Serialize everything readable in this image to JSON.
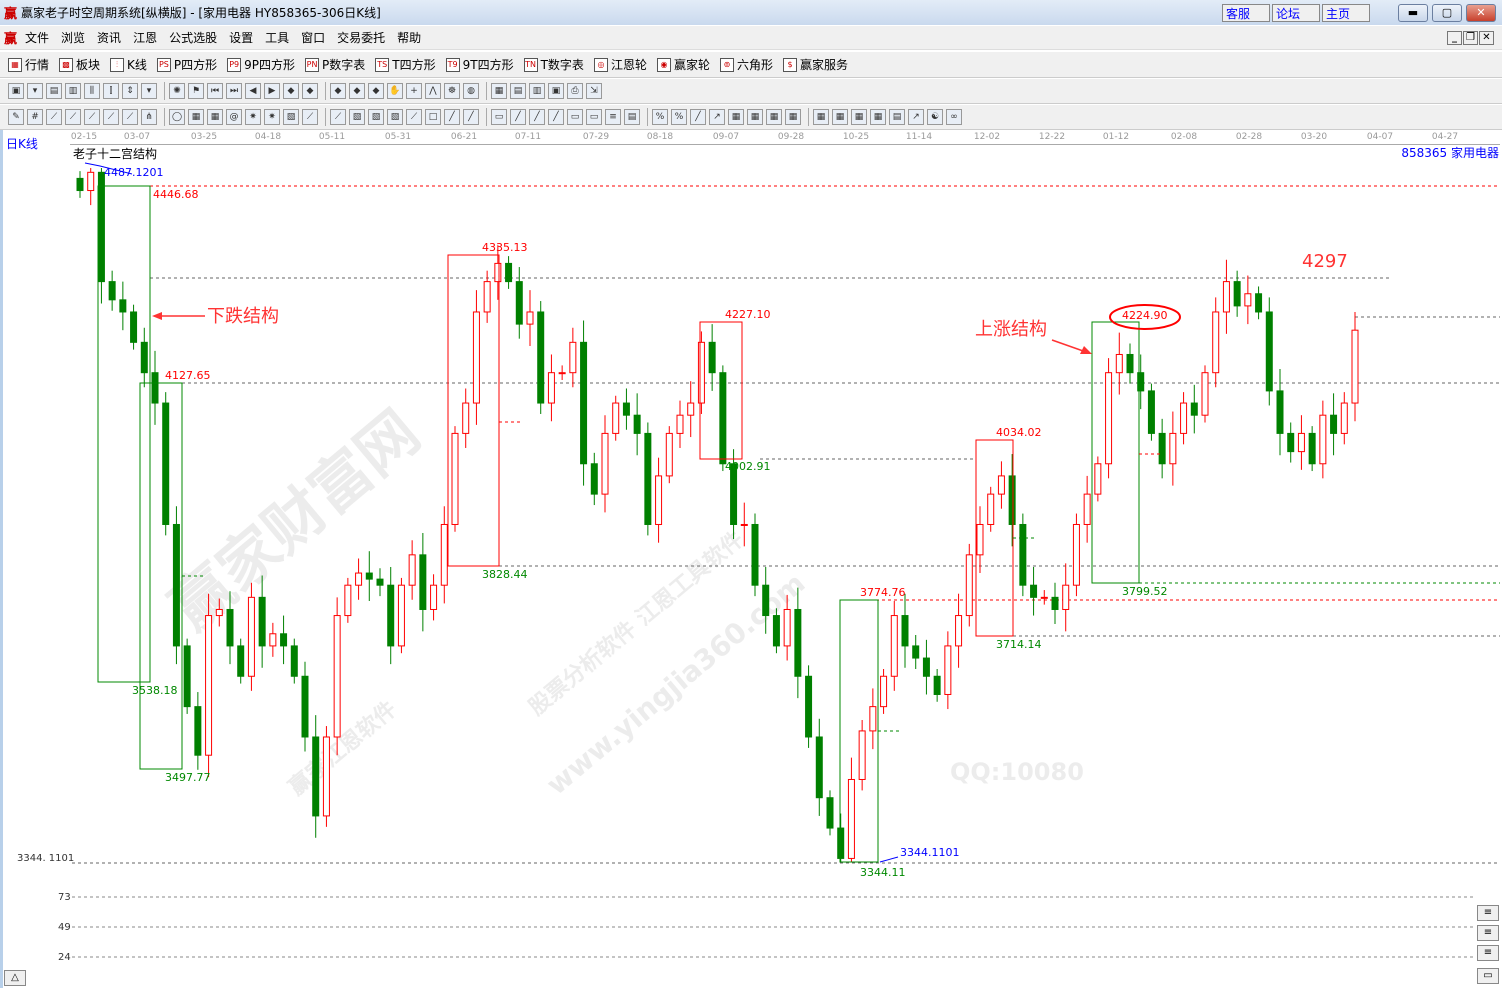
{
  "window": {
    "title": "赢家老子时空周期系统[纵横版] - [家用电器  HY858365-306日K线]",
    "logo": "赢",
    "web_buttons": [
      "客服",
      "论坛",
      "主页"
    ],
    "controls": [
      "minimize",
      "maximize",
      "close"
    ]
  },
  "menu": [
    "文件",
    "浏览",
    "资讯",
    "江恩",
    "公式选股",
    "设置",
    "工具",
    "窗口",
    "交易委托",
    "帮助"
  ],
  "toolbar1": [
    {
      "icon": "grid-quote-icon",
      "glyph": "▦",
      "label": "行情"
    },
    {
      "icon": "sector-icon",
      "glyph": "▩",
      "label": "板块"
    },
    {
      "icon": "kline-icon",
      "glyph": "⫶",
      "label": "K线"
    },
    {
      "icon": "ps-icon",
      "glyph": "PS",
      "label": "P四方形"
    },
    {
      "icon": "p9-icon",
      "glyph": "P9",
      "label": "9P四方形"
    },
    {
      "icon": "pn-icon",
      "glyph": "PN",
      "label": "P数字表"
    },
    {
      "icon": "ts-icon",
      "glyph": "TS",
      "label": "T四方形"
    },
    {
      "icon": "t9-icon",
      "glyph": "T9",
      "label": "9T四方形"
    },
    {
      "icon": "tn-icon",
      "glyph": "TN",
      "label": "T数字表"
    },
    {
      "icon": "gann-wheel-icon",
      "glyph": "◎",
      "label": "江恩轮"
    },
    {
      "icon": "winner-wheel-icon",
      "glyph": "◉",
      "label": "赢家轮"
    },
    {
      "icon": "hexagon-icon",
      "glyph": "⊚",
      "label": "六角形"
    },
    {
      "icon": "dollar-icon",
      "glyph": "$",
      "label": "赢家服务"
    }
  ],
  "toolbar2": [
    "save",
    "dropdown",
    "screen",
    "doc",
    "bars",
    "bars2",
    "updown",
    "dropdown",
    "gann",
    "flag",
    "first",
    "last",
    "left",
    "right",
    "diamond",
    "diamond",
    "diamond",
    "diamond",
    "diamond",
    "hand",
    "cross",
    "zigzag",
    "brain",
    "globe",
    "calendar",
    "calc",
    "notes",
    "disk",
    "print",
    "export"
  ],
  "toolbar3": [
    "pen",
    "hash",
    "fan",
    "fan",
    "fan",
    "fan",
    "fan",
    "pitch",
    "circle",
    "grid",
    "grid",
    "spiral",
    "star",
    "star",
    "box",
    "fan",
    "fan",
    "box",
    "box",
    "box",
    "fan",
    "square",
    "line",
    "line",
    "rect",
    "line",
    "line",
    "line",
    "rect",
    "rect",
    "lines",
    "table",
    "percent",
    "percent",
    "line",
    "arrow",
    "grid",
    "grid",
    "grid",
    "grid",
    "grid",
    "grid",
    "grid",
    "grid",
    "table",
    "chart",
    "yinyang",
    "infinity"
  ],
  "chart": {
    "period_label": "日K线",
    "structure_label": "老子十二宫结构",
    "symbol": "858365  家用电器",
    "dates": [
      "02-15",
      "03-07",
      "03-25",
      "04-18",
      "05-11",
      "05-31",
      "06-21",
      "07-11",
      "07-29",
      "08-18",
      "09-07",
      "09-28",
      "10-25",
      "11-14",
      "12-02",
      "12-22",
      "01-12",
      "02-08",
      "02-28",
      "03-20",
      "04-07",
      "04-27"
    ],
    "annotations": {
      "high_blue": "4487.1201",
      "p1": "4446.68",
      "p2": "4127.65",
      "p3": "3538.18",
      "p4": "3497.77",
      "p5": "4335.13",
      "p6": "3828.44",
      "p7": "4227.10",
      "p8": "4002.91",
      "p9": "3774.76",
      "p10": "3344.11",
      "p11": "3344.1101",
      "p12": "4034.02",
      "p13": "3714.14",
      "p14": "4224.90",
      "p15": "3799.52",
      "target": "4297",
      "down": "下跌结构",
      "up": "上涨结构"
    },
    "axis_left": "3344. 1101",
    "sub_axis": [
      "73",
      "49",
      "24"
    ],
    "colors": {
      "up": "#ff0000",
      "down": "#008000",
      "box_red": "#ff0000",
      "box_green": "#008000"
    }
  },
  "watermark": [
    "赢家财富网",
    "股票分析软件 江恩工具软件",
    "www.yingjia360.com",
    "赢家江恩软件",
    "QQ:10080"
  ],
  "chart_data": {
    "type": "candlestick",
    "xlabel": "",
    "ylabel": "",
    "ylim": [
      3344.11,
      4487.12
    ],
    "closes": [
      4450,
      4480,
      4300,
      4270,
      4250,
      4200,
      4150,
      4100,
      3900,
      3700,
      3600,
      3520,
      3750,
      3760,
      3700,
      3650,
      3780,
      3700,
      3720,
      3700,
      3650,
      3550,
      3420,
      3550,
      3750,
      3800,
      3820,
      3810,
      3800,
      3700,
      3800,
      3850,
      3760,
      3800,
      3900,
      4050,
      4100,
      4250,
      4300,
      4330,
      4300,
      4230,
      4250,
      4100,
      4150,
      4150,
      4200,
      4000,
      3950,
      4050,
      4100,
      4080,
      4050,
      3900,
      3980,
      4050,
      4080,
      4100,
      4200,
      4150,
      4000,
      3900,
      3900,
      3800,
      3750,
      3700,
      3760,
      3650,
      3550,
      3450,
      3400,
      3350,
      3480,
      3560,
      3600,
      3650,
      3750,
      3700,
      3680,
      3650,
      3620,
      3700,
      3750,
      3850,
      3900,
      3950,
      3980,
      3900,
      3800,
      3780,
      3780,
      3760,
      3800,
      3900,
      3950,
      4000,
      4150,
      4180,
      4150,
      4120,
      4050,
      4000,
      4050,
      4100,
      4080,
      4150,
      4250,
      4300,
      4260,
      4280,
      4250,
      4120,
      4050,
      4020,
      4050,
      4000,
      4080,
      4050,
      4100,
      4220
    ]
  }
}
